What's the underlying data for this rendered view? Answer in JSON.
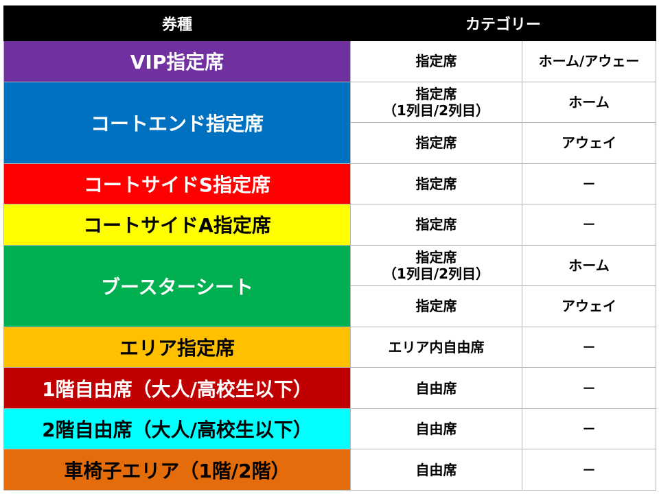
{
  "header": {
    "ticket_type": "券種",
    "category": "カテゴリー"
  },
  "rows": [
    {
      "type": "VIP指定席",
      "bg": "#7030a0",
      "fg": "#ffffff",
      "subs": [
        {
          "seat": "指定席",
          "seat_line2": "",
          "side": "ホーム/アウェー"
        }
      ]
    },
    {
      "type": "コートエンド指定席",
      "bg": "#0070c0",
      "fg": "#ffffff",
      "subs": [
        {
          "seat": "指定席",
          "seat_line2": "（1列目/2列目）",
          "side": "ホーム"
        },
        {
          "seat": "指定席",
          "seat_line2": "",
          "side": "アウェイ"
        }
      ]
    },
    {
      "type": "コートサイドS指定席",
      "bg": "#ff0000",
      "fg": "#ffffff",
      "subs": [
        {
          "seat": "指定席",
          "seat_line2": "",
          "side": "－"
        }
      ]
    },
    {
      "type": "コートサイドA指定席",
      "bg": "#ffff00",
      "fg": "#000000",
      "subs": [
        {
          "seat": "指定席",
          "seat_line2": "",
          "side": "－"
        }
      ]
    },
    {
      "type": "ブースターシート",
      "bg": "#00b050",
      "fg": "#ffffff",
      "subs": [
        {
          "seat": "指定席",
          "seat_line2": "（1列目/2列目）",
          "side": "ホーム"
        },
        {
          "seat": "指定席",
          "seat_line2": "",
          "side": "アウェイ"
        }
      ]
    },
    {
      "type": "エリア指定席",
      "bg": "#ffc000",
      "fg": "#000000",
      "subs": [
        {
          "seat": "エリア内自由席",
          "seat_line2": "",
          "side": "－"
        }
      ]
    },
    {
      "type": "1階自由席（大人/高校生以下）",
      "bg": "#c00000",
      "fg": "#ffffff",
      "subs": [
        {
          "seat": "自由席",
          "seat_line2": "",
          "side": "－"
        }
      ]
    },
    {
      "type": "2階自由席（大人/高校生以下）",
      "bg": "#00ffff",
      "fg": "#000000",
      "subs": [
        {
          "seat": "自由席",
          "seat_line2": "",
          "side": "－"
        }
      ]
    },
    {
      "type": "車椅子エリア（1階/2階）",
      "bg": "#e46c0a",
      "fg": "#000000",
      "subs": [
        {
          "seat": "自由席",
          "seat_line2": "",
          "side": "－"
        }
      ]
    }
  ]
}
